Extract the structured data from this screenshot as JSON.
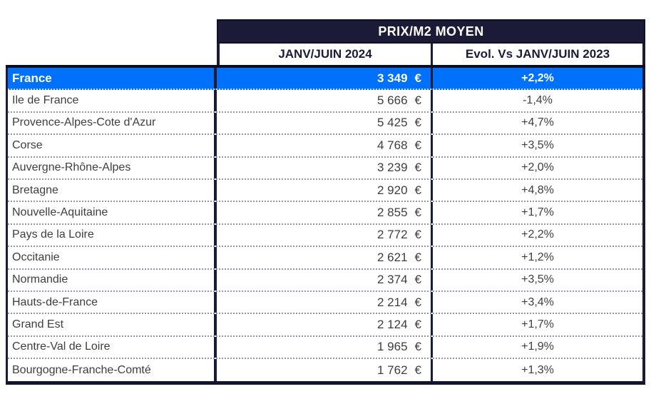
{
  "chart_data": {
    "type": "table",
    "title": "PRIX/M2 MOYEN",
    "columns": [
      "",
      "JANV/JUIN 2024",
      "Evol. Vs JANV/JUIN 2023"
    ],
    "currency_symbol": "€",
    "rows": [
      {
        "label": "France",
        "price": "3 349",
        "evol": "+2,2%",
        "highlight": true
      },
      {
        "label": "Ile de France",
        "price": "5 666",
        "evol": "-1,4%"
      },
      {
        "label": "Provence-Alpes-Cote d'Azur",
        "price": "5 425",
        "evol": "+4,7%"
      },
      {
        "label": "Corse",
        "price": "4 768",
        "evol": "+3,5%"
      },
      {
        "label": "Auvergne-Rhône-Alpes",
        "price": "3 239",
        "evol": "+2,0%"
      },
      {
        "label": "Bretagne",
        "price": "2 920",
        "evol": "+4,8%"
      },
      {
        "label": "Nouvelle-Aquitaine",
        "price": "2 855",
        "evol": "+1,7%"
      },
      {
        "label": "Pays de la Loire",
        "price": "2 772",
        "evol": "+2,2%"
      },
      {
        "label": "Occitanie",
        "price": "2 621",
        "evol": "+1,2%"
      },
      {
        "label": "Normandie",
        "price": "2 374",
        "evol": "+3,5%"
      },
      {
        "label": "Hauts-de-France",
        "price": "2 214",
        "evol": "+3,4%"
      },
      {
        "label": "Grand Est",
        "price": "2 124",
        "evol": "+1,7%"
      },
      {
        "label": "Centre-Val de Loire",
        "price": "1 965",
        "evol": "+1,9%"
      },
      {
        "label": "Bourgogne-Franche-Comté",
        "price": "1 762",
        "evol": "+1,3%"
      }
    ]
  },
  "header": {
    "group_title": "PRIX/M2 MOYEN",
    "col_period": "JANV/JUIN 2024",
    "col_evol": "Evol. Vs JANV/JUIN 2023"
  },
  "colors": {
    "header_bg": "#1b1b38",
    "highlight_row_bg": "#0071fb",
    "body_text": "#3e3e3e",
    "dotted_separator": "#9094b6"
  }
}
